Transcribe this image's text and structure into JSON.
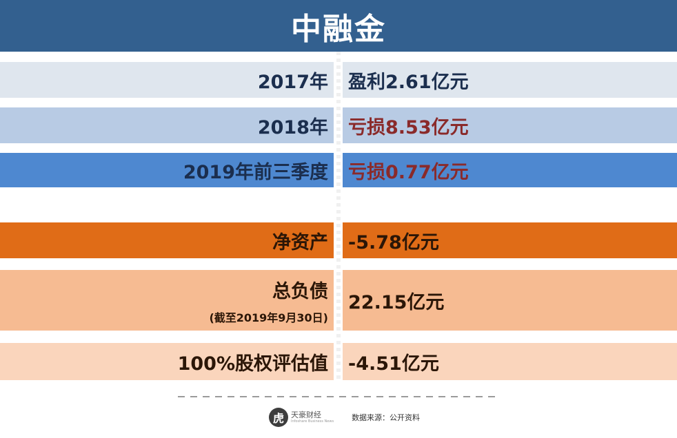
{
  "header": {
    "title": "中融金"
  },
  "rows": [
    {
      "label": "2017年",
      "value": "盈利2.61亿元"
    },
    {
      "label": "2018年",
      "value": "亏损8.53亿元"
    },
    {
      "label": "2019年前三季度",
      "value": "亏损0.77亿元"
    },
    {
      "label": "净资产",
      "value": "-5.78亿元"
    },
    {
      "label": "总负债",
      "note": "(截至2019年9月30日)",
      "value": "22.15亿元"
    },
    {
      "label": "100%股权评估值",
      "value": "-4.51亿元"
    }
  ],
  "footer": {
    "logo_glyph": "虎",
    "brand": "天豪财经",
    "brand_sub": "Infoshare Business News",
    "source": "数据来源：公开资料"
  },
  "colors": {
    "header": "#33608f",
    "loss_text": "#8a2a2a",
    "profit_text": "#1b2e4e"
  }
}
